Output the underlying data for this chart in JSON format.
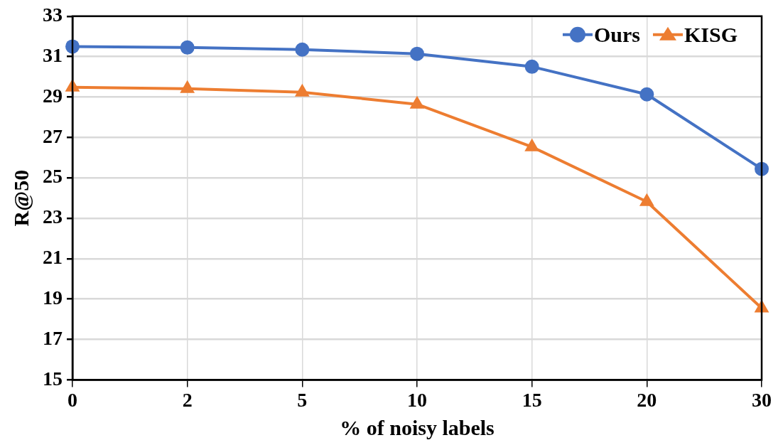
{
  "chart_data": {
    "type": "line",
    "xlabel": "% of noisy labels",
    "ylabel": "R@50",
    "categories": [
      "0",
      "2",
      "5",
      "10",
      "15",
      "20",
      "30"
    ],
    "series": [
      {
        "name": "Ours",
        "color": "#4472c4",
        "marker": "circle",
        "values": [
          31.5,
          31.45,
          31.35,
          31.14,
          30.5,
          29.13,
          25.44
        ]
      },
      {
        "name": "KISG",
        "color": "#ed7d31",
        "marker": "triangle",
        "values": [
          29.48,
          29.41,
          29.24,
          28.64,
          26.53,
          23.82,
          18.55
        ]
      }
    ],
    "ylim": [
      15,
      33
    ],
    "yticks": [
      15,
      17,
      19,
      21,
      23,
      25,
      27,
      29,
      31,
      33
    ],
    "grid": true,
    "legend": "top right",
    "line_style": "solid"
  }
}
